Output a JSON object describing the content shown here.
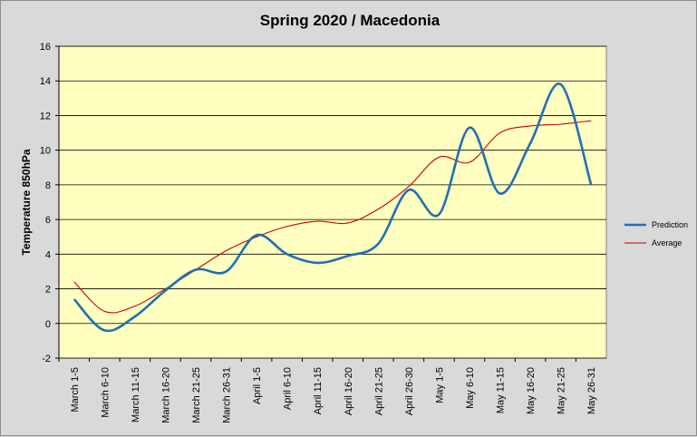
{
  "chart_data": {
    "type": "line",
    "title": "Spring 2020 / Macedonia",
    "xlabel": "",
    "ylabel": "Temperature 850hPa",
    "ylim": [
      -2,
      16
    ],
    "yticks": [
      -2,
      0,
      2,
      4,
      6,
      8,
      10,
      12,
      14,
      16
    ],
    "grid": true,
    "legend_position": "right",
    "colors": {
      "plot_background": "#ffffc0",
      "page_background": "#d9d9d9",
      "gridline": "#000000"
    },
    "categories": [
      "March 1-5",
      "March 6-10",
      "March 11-15",
      "March 16-20",
      "March 21-25",
      "March 26-31",
      "April 1-5",
      "April 6-10",
      "April 11-15",
      "April 16-20",
      "April 21-25",
      "April 26-30",
      "May 1-5",
      "May 6-10",
      "May 11-15",
      "May 16-20",
      "May 21-25",
      "May 26-31"
    ],
    "series": [
      {
        "name": "Prediction",
        "color": "#1f6fb4",
        "values": [
          1.4,
          -0.4,
          0.4,
          1.9,
          3.1,
          3.0,
          5.1,
          4.0,
          3.5,
          3.9,
          4.6,
          7.7,
          6.3,
          11.3,
          7.5,
          10.4,
          13.8,
          8.0
        ]
      },
      {
        "name": "Average",
        "color": "#cc0000",
        "values": [
          2.4,
          0.7,
          1.0,
          2.0,
          3.1,
          4.2,
          5.0,
          5.6,
          5.9,
          5.8,
          6.6,
          7.9,
          9.6,
          9.3,
          11.0,
          11.4,
          11.5,
          11.7
        ]
      }
    ]
  }
}
